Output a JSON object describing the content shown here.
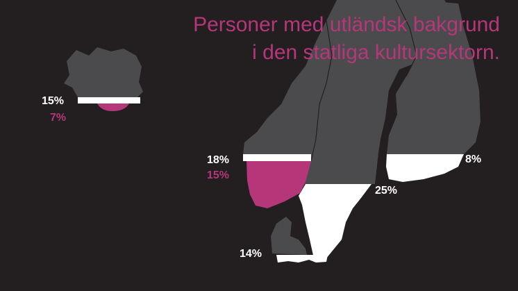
{
  "title": [
    "Personer med utländsk bakgrund",
    "i den statliga kultursektorn."
  ],
  "iceland": {
    "total": "15%",
    "culture": "7%"
  },
  "norway": {
    "total": "18%",
    "culture": "15%"
  },
  "sweden": {
    "total": "25%"
  },
  "finland": {
    "total": "8%"
  },
  "denmark": {
    "total": "14%"
  }
}
